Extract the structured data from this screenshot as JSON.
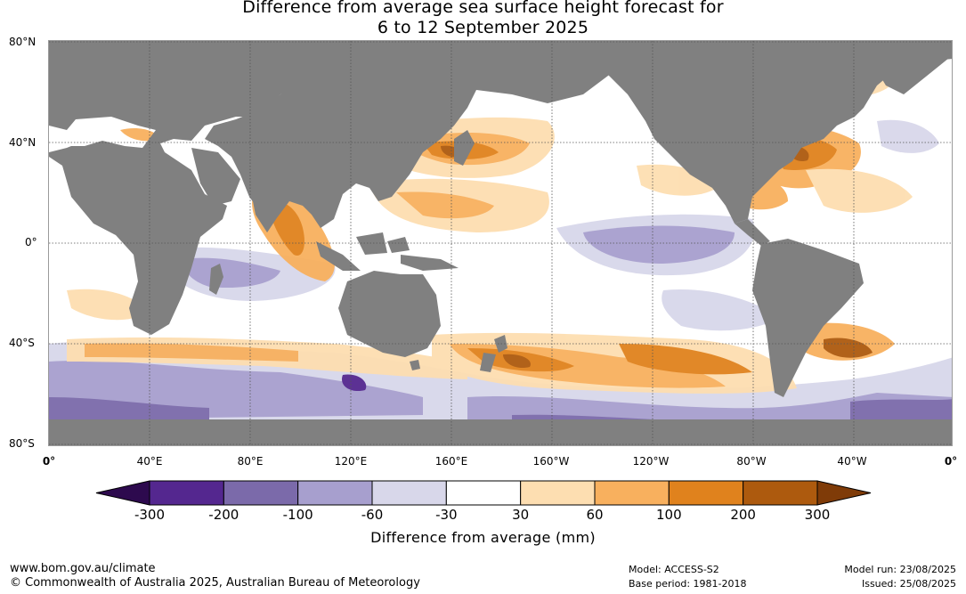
{
  "title_line1": "Difference from average sea surface height forecast for",
  "title_line2": "6 to 12 September 2025",
  "lat_labels": [
    "80°N",
    "40°N",
    "0°",
    "40°S",
    "80°S"
  ],
  "lon_labels": [
    "0°",
    "40°E",
    "80°E",
    "120°E",
    "160°E",
    "160°W",
    "120°W",
    "80°W",
    "40°W",
    "0°"
  ],
  "colorbar": {
    "ticks": [
      "-300",
      "-200",
      "-100",
      "-60",
      "-30",
      "30",
      "60",
      "100",
      "200",
      "300"
    ],
    "colors": [
      "#2d0a4e",
      "#54278f",
      "#7b6aaa",
      "#a79fce",
      "#d8d7ea",
      "#ffffff",
      "#fddeb1",
      "#f8b05e",
      "#e0821d",
      "#ad5a0e",
      "#7f3b08"
    ],
    "title": "Difference from average (mm)"
  },
  "colors": {
    "land": "#808080",
    "ocean_neutral": "#ffffff",
    "grid": "#555555"
  },
  "footer": {
    "website": "www.bom.gov.au/climate",
    "copyright": "© Commonwealth of Australia 2025, Australian Bureau of Meteorology",
    "model": "Model: ACCESS-S2",
    "base_period": "Base period: 1981-2018",
    "model_run": "Model run: 23/08/2025",
    "issued": "Issued: 25/08/2025"
  }
}
